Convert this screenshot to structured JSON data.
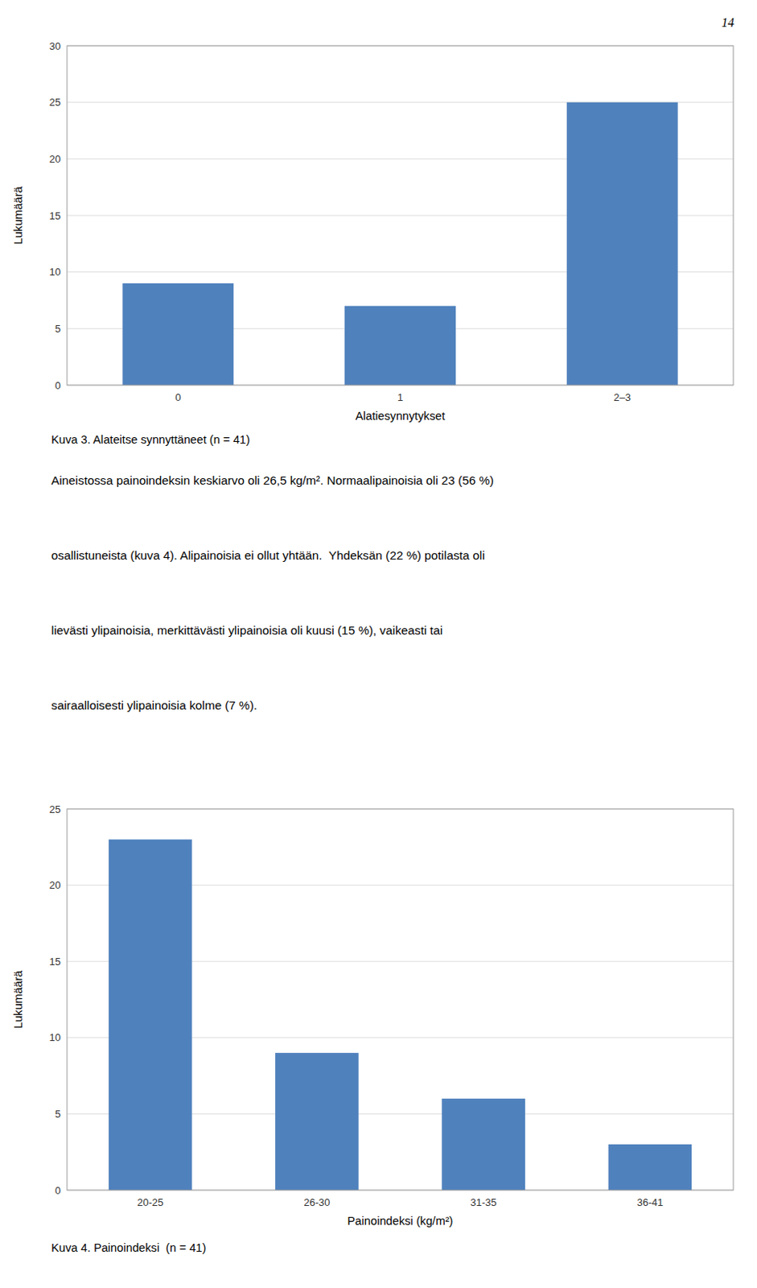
{
  "page_number": "14",
  "text_lines": [
    "Aineistossa painoindeksin keskiarvo oli 26,5 kg/m². Normaalipainoisia oli 23 (56 %)",
    "osallistuneista (kuva 4). Alipainoisia ei ollut yhtään.  Yhdeksän (22 %) potilasta oli",
    "lievästi ylipainoisia, merkittävästi ylipainoisia oli kuusi (15 %), vaikeasti tai",
    "sairaalloisesti ylipainoisia kolme (7 %)."
  ],
  "chart_data": [
    {
      "type": "bar",
      "caption": "Kuva 3. Alateitse synnyttäneet (n = 41)",
      "xlabel": "Alatiesynnytykset",
      "ylabel": "Lukumäärä",
      "categories": [
        "0",
        "1",
        "2–3"
      ],
      "values": [
        9,
        7,
        25
      ],
      "color": "#4f81bd",
      "ylim": [
        0,
        30
      ],
      "yticks": [
        0,
        5,
        10,
        15,
        20,
        25,
        30
      ],
      "grid": true
    },
    {
      "type": "bar",
      "caption": "Kuva 4. Painoindeksi  (n = 41)",
      "xlabel": "Painoindeksi (kg/m²)",
      "ylabel": "Lukumäärä",
      "categories": [
        "20-25",
        "26-30",
        "31-35",
        "36-41"
      ],
      "values": [
        23,
        9,
        6,
        3
      ],
      "color": "#4f81bd",
      "ylim": [
        0,
        25
      ],
      "yticks": [
        0,
        5,
        10,
        15,
        20,
        25
      ],
      "grid": true
    }
  ]
}
